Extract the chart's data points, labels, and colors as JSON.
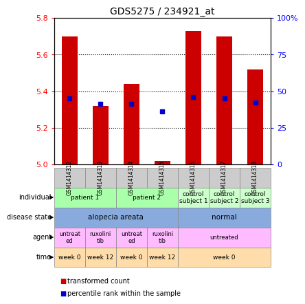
{
  "title": "GDS5275 / 234921_at",
  "samples": [
    "GSM1414312",
    "GSM1414313",
    "GSM1414314",
    "GSM1414315",
    "GSM1414316",
    "GSM1414317",
    "GSM1414318"
  ],
  "bar_values": [
    5.7,
    5.32,
    5.44,
    5.02,
    5.73,
    5.7,
    5.52
  ],
  "percentile_values": [
    5.36,
    5.33,
    5.33,
    5.29,
    5.37,
    5.36,
    5.34
  ],
  "bar_color": "#cc0000",
  "percentile_color": "#0000cc",
  "ymin": 5.0,
  "ymax": 5.8,
  "yticks": [
    5.0,
    5.2,
    5.4,
    5.6,
    5.8
  ],
  "right_yticks": [
    0,
    25,
    50,
    75,
    100
  ],
  "right_ytick_labels": [
    "0",
    "25",
    "50",
    "75",
    "100%"
  ],
  "background_color": "#ffffff",
  "bar_width": 0.5,
  "bar_base": 5.0,
  "sample_bg": "#cccccc",
  "ind_data": [
    [
      0,
      2,
      "patient 1",
      "#aaffaa"
    ],
    [
      2,
      4,
      "patient 2",
      "#aaffaa"
    ],
    [
      4,
      5,
      "control\nsubject 1",
      "#ccffcc"
    ],
    [
      5,
      6,
      "control\nsubject 2",
      "#ccffcc"
    ],
    [
      6,
      7,
      "control\nsubject 3",
      "#ccffcc"
    ]
  ],
  "dis_data": [
    [
      0,
      4,
      "alopecia areata",
      "#88aadd"
    ],
    [
      4,
      7,
      "normal",
      "#88aadd"
    ]
  ],
  "ag_data": [
    [
      0,
      1,
      "untreat\ned",
      "#ffbbff"
    ],
    [
      1,
      2,
      "ruxolini\ntib",
      "#ffbbff"
    ],
    [
      2,
      3,
      "untreat\ned",
      "#ffbbff"
    ],
    [
      3,
      4,
      "ruxolini\ntib",
      "#ffbbff"
    ],
    [
      4,
      7,
      "untreated",
      "#ffbbff"
    ]
  ],
  "tm_data": [
    [
      0,
      1,
      "week 0",
      "#ffddaa"
    ],
    [
      1,
      2,
      "week 12",
      "#ffddaa"
    ],
    [
      2,
      3,
      "week 0",
      "#ffddaa"
    ],
    [
      3,
      4,
      "week 12",
      "#ffddaa"
    ],
    [
      4,
      7,
      "week 0",
      "#ffddaa"
    ]
  ],
  "row_labels": [
    "individual",
    "disease state",
    "agent",
    "time"
  ],
  "legend_items": [
    [
      "transformed count",
      "#cc0000"
    ],
    [
      "percentile rank within the sample",
      "#0000cc"
    ]
  ]
}
